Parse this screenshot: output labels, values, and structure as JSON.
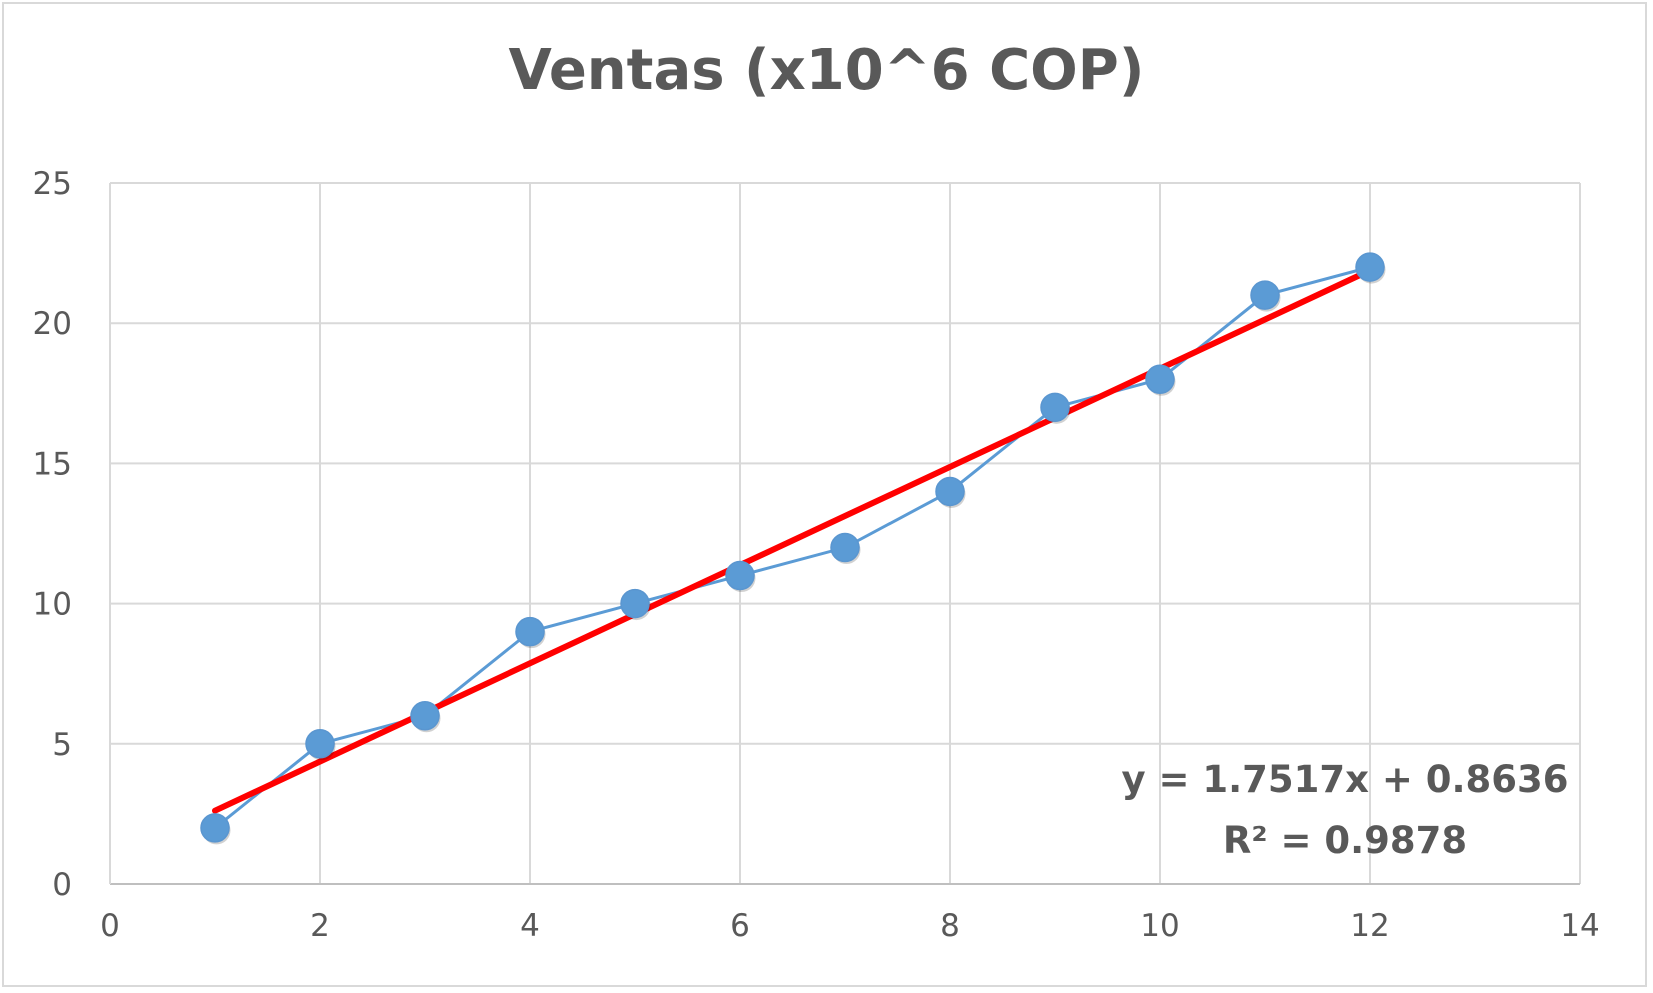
{
  "chart_data": {
    "type": "scatter",
    "title": "Ventas (x10^6 COP)",
    "xlabel": "",
    "ylabel": "",
    "xlim": [
      0,
      14
    ],
    "ylim": [
      0,
      25
    ],
    "x_ticks": [
      0,
      2,
      4,
      6,
      8,
      10,
      12,
      14
    ],
    "y_ticks": [
      0,
      5,
      10,
      15,
      20,
      25
    ],
    "grid": true,
    "legend": "none",
    "series": [
      {
        "x": [
          1,
          2,
          3,
          4,
          5,
          6,
          7,
          8,
          9,
          10,
          11,
          12
        ],
        "y": [
          2,
          5,
          6,
          9,
          10,
          11,
          12,
          14,
          17,
          18,
          21,
          22
        ],
        "color": "#5b9bd5",
        "connected": true
      }
    ],
    "trendline": {
      "type": "linear",
      "slope": 1.7517,
      "intercept": 0.8636,
      "x_range": [
        1,
        12
      ],
      "color": "#ff0000",
      "equation_label": "y = 1.7517x + 0.8636",
      "r2_label": "R² = 0.9878"
    }
  }
}
